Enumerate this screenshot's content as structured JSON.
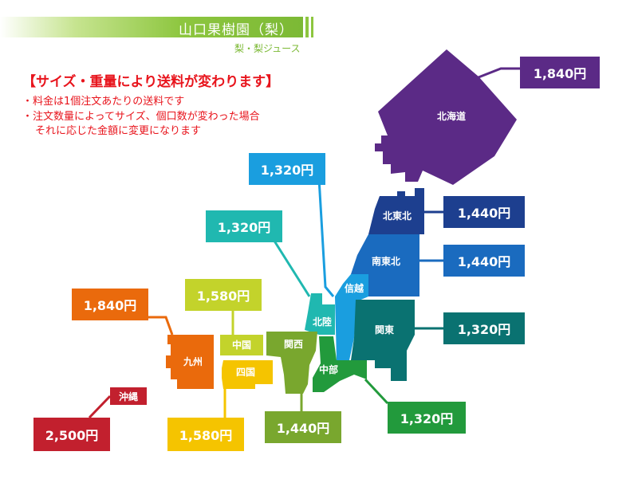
{
  "header": {
    "title": "山口果樹園（梨）",
    "subtitle": "梨・梨ジュース"
  },
  "notice": {
    "heading": "【サイズ・重量により送料が変わります】",
    "lines": [
      "・料金は1個注文あたりの送料です",
      "・注文数量によってサイズ、個口数が変わった場合",
      "それに応じた金額に変更になります"
    ]
  },
  "regions": [
    {
      "name": "北海道",
      "price": "1,840円",
      "color": "#5b2a86"
    },
    {
      "name": "北東北",
      "price": "1,440円",
      "color": "#1d3f8f"
    },
    {
      "name": "南東北",
      "price": "1,440円",
      "color": "#1a6bbf"
    },
    {
      "name": "信越",
      "price": "1,320円",
      "color": "#1a9edf"
    },
    {
      "name": "関東",
      "price": "1,320円",
      "color": "#0a7271"
    },
    {
      "name": "北陸",
      "price": "1,320円",
      "color": "#20b8b0"
    },
    {
      "name": "中部",
      "price": "1,320円",
      "color": "#229a3c"
    },
    {
      "name": "関西",
      "price": "1,440円",
      "color": "#79a72e"
    },
    {
      "name": "中国",
      "price": "1,580円",
      "color": "#c3d32b"
    },
    {
      "name": "四国",
      "price": "1,580円",
      "color": "#f5c400"
    },
    {
      "name": "九州",
      "price": "1,840円",
      "color": "#ea6a0c"
    },
    {
      "name": "沖縄",
      "price": "2,500円",
      "color": "#c2202e"
    }
  ]
}
